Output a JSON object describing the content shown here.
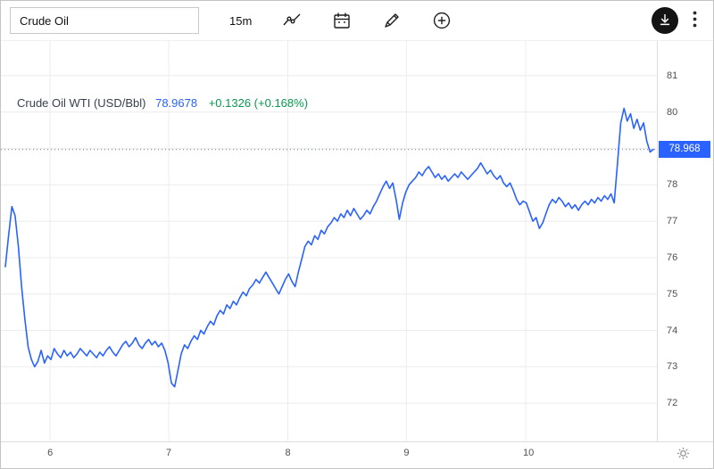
{
  "toolbar": {
    "symbol_search": {
      "value": "Crude Oil"
    },
    "interval_label": "15m",
    "icons": {
      "chart_style": "line-chart-icon",
      "calendar": "calendar-icon",
      "draw": "pencil-icon",
      "add": "plus-circle-icon",
      "download": "download-icon",
      "more": "kebab-menu-icon",
      "settings": "gear-icon"
    }
  },
  "legend": {
    "title": "Crude Oil WTI (USD/Bbl)",
    "value": "78.9678",
    "change": "+0.1326 (+0.168%)"
  },
  "colors": {
    "line_blue": "#2962ff",
    "value_blue": "#2962ff",
    "positive_green": "#089950",
    "grid": "#ececec",
    "axis_text": "#4f4f4f",
    "badge_bg": "#2962ff",
    "download_btn_bg": "#141414"
  },
  "chart_data": {
    "type": "line",
    "title": "Crude Oil WTI (USD/Bbl)",
    "interval": "15m",
    "xlabel": "",
    "ylabel": "",
    "grid": true,
    "legend_position": "top-left",
    "last_price": 78.968,
    "price_label": "78.968",
    "legend_value": 78.9678,
    "change_abs": 0.1326,
    "change_pct": 0.168,
    "ylim": [
      70.95,
      81.95
    ],
    "y_ticks": [
      81,
      80,
      79,
      78,
      77,
      76,
      75,
      74,
      73,
      72
    ],
    "x_ticks": [
      {
        "label": "6",
        "f": 0.069
      },
      {
        "label": "7",
        "f": 0.252
      },
      {
        "label": "8",
        "f": 0.436
      },
      {
        "label": "9",
        "f": 0.619
      },
      {
        "label": "10",
        "f": 0.803
      }
    ],
    "prices": [
      75.75,
      76.6,
      77.4,
      77.15,
      76.3,
      75.2,
      74.3,
      73.55,
      73.2,
      73.0,
      73.15,
      73.45,
      73.1,
      73.3,
      73.2,
      73.5,
      73.35,
      73.25,
      73.45,
      73.3,
      73.4,
      73.25,
      73.35,
      73.5,
      73.4,
      73.3,
      73.45,
      73.35,
      73.25,
      73.4,
      73.3,
      73.45,
      73.55,
      73.4,
      73.3,
      73.45,
      73.6,
      73.7,
      73.55,
      73.65,
      73.8,
      73.6,
      73.5,
      73.65,
      73.75,
      73.6,
      73.7,
      73.55,
      73.65,
      73.45,
      73.1,
      72.55,
      72.45,
      72.9,
      73.35,
      73.6,
      73.5,
      73.7,
      73.85,
      73.75,
      74.0,
      73.9,
      74.1,
      74.25,
      74.15,
      74.4,
      74.55,
      74.45,
      74.7,
      74.6,
      74.8,
      74.7,
      74.9,
      75.05,
      74.95,
      75.15,
      75.25,
      75.4,
      75.3,
      75.45,
      75.6,
      75.45,
      75.3,
      75.15,
      75.0,
      75.2,
      75.4,
      75.55,
      75.35,
      75.2,
      75.6,
      75.95,
      76.3,
      76.45,
      76.35,
      76.6,
      76.5,
      76.75,
      76.65,
      76.85,
      76.95,
      77.1,
      77.0,
      77.2,
      77.1,
      77.3,
      77.15,
      77.35,
      77.2,
      77.05,
      77.15,
      77.3,
      77.2,
      77.4,
      77.55,
      77.75,
      77.95,
      78.1,
      77.9,
      78.05,
      77.6,
      77.05,
      77.5,
      77.8,
      78.0,
      78.1,
      78.2,
      78.35,
      78.25,
      78.4,
      78.5,
      78.35,
      78.2,
      78.3,
      78.15,
      78.25,
      78.1,
      78.2,
      78.3,
      78.2,
      78.35,
      78.25,
      78.15,
      78.25,
      78.35,
      78.45,
      78.6,
      78.45,
      78.3,
      78.4,
      78.25,
      78.15,
      78.25,
      78.05,
      77.95,
      78.05,
      77.85,
      77.6,
      77.45,
      77.55,
      77.5,
      77.25,
      77.0,
      77.1,
      76.8,
      76.95,
      77.2,
      77.45,
      77.6,
      77.5,
      77.65,
      77.55,
      77.4,
      77.5,
      77.35,
      77.45,
      77.3,
      77.45,
      77.55,
      77.45,
      77.6,
      77.5,
      77.65,
      77.55,
      77.7,
      77.6,
      77.75,
      77.5,
      78.6,
      79.7,
      80.1,
      79.75,
      79.95,
      79.55,
      79.8,
      79.5,
      79.7,
      79.2,
      78.9,
      78.97
    ]
  }
}
